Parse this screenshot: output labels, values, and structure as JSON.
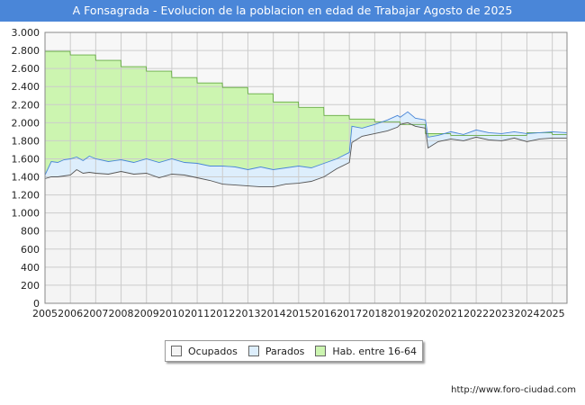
{
  "chart_data": {
    "type": "area",
    "title": "A Fonsagrada - Evolucion de la poblacion en edad de Trabajar Agosto de 2025",
    "xlabel": "",
    "ylabel": "",
    "ylim": [
      0,
      3000
    ],
    "xlim": [
      2005,
      2025.58
    ],
    "y_ticks": [
      0,
      200,
      400,
      600,
      800,
      1000,
      1200,
      1400,
      1600,
      1800,
      2000,
      2200,
      2400,
      2600,
      2800,
      3000
    ],
    "y_tick_labels": [
      "0",
      "200",
      "400",
      "600",
      "800",
      "1.000",
      "1.200",
      "1.400",
      "1.600",
      "1.800",
      "2.000",
      "2.200",
      "2.400",
      "2.600",
      "2.800",
      "3.000"
    ],
    "x_ticks": [
      2005,
      2006,
      2007,
      2008,
      2009,
      2010,
      2011,
      2012,
      2013,
      2014,
      2015,
      2016,
      2017,
      2018,
      2019,
      2020,
      2021,
      2022,
      2023,
      2024,
      2025
    ],
    "x_tick_labels": [
      "2005",
      "2006",
      "2007",
      "2008",
      "2009",
      "2010",
      "2011",
      "2012",
      "2013",
      "2014",
      "2015",
      "2016",
      "2017",
      "2018",
      "2019",
      "2020",
      "2021",
      "2022",
      "2023",
      "2024",
      "2025"
    ],
    "grid": true,
    "legend_position": "bottom",
    "series": [
      {
        "name": "Hab. entre 16-64",
        "color": "#ccf5b0",
        "line_color": "#66aa44",
        "x": [
          2005.0,
          2005.99,
          2006.0,
          2006.99,
          2007.0,
          2007.99,
          2008.0,
          2008.99,
          2009.0,
          2009.99,
          2010.0,
          2010.99,
          2011.0,
          2011.99,
          2012.0,
          2012.99,
          2013.0,
          2013.99,
          2014.0,
          2014.99,
          2015.0,
          2015.99,
          2016.0,
          2016.99,
          2017.0,
          2017.99,
          2018.0,
          2018.99,
          2019.0,
          2019.99,
          2020.0,
          2020.99,
          2021.0,
          2021.99,
          2022.0,
          2022.99,
          2023.0,
          2023.99,
          2024.0,
          2024.99,
          2025.0,
          2025.58
        ],
        "values": [
          2790,
          2790,
          2750,
          2750,
          2690,
          2690,
          2620,
          2620,
          2570,
          2570,
          2500,
          2500,
          2440,
          2440,
          2390,
          2390,
          2320,
          2320,
          2230,
          2230,
          2170,
          2170,
          2080,
          2080,
          2040,
          2040,
          2010,
          2010,
          1980,
          1980,
          1880,
          1880,
          1860,
          1860,
          1860,
          1860,
          1860,
          1860,
          1890,
          1890,
          1870,
          1870
        ]
      },
      {
        "name": "Parados",
        "color": "#ddeefc",
        "line_color": "#4a86d8",
        "x": [
          2005.0,
          2005.25,
          2005.5,
          2005.75,
          2006.0,
          2006.25,
          2006.5,
          2006.75,
          2007.0,
          2007.5,
          2008.0,
          2008.5,
          2009.0,
          2009.5,
          2010.0,
          2010.5,
          2011.0,
          2011.5,
          2012.0,
          2012.5,
          2013.0,
          2013.5,
          2014.0,
          2014.5,
          2015.0,
          2015.5,
          2016.0,
          2016.5,
          2017.0,
          2017.1,
          2017.5,
          2018.0,
          2018.5,
          2018.9,
          2019.0,
          2019.3,
          2019.6,
          2020.0,
          2020.1,
          2020.5,
          2021.0,
          2021.5,
          2022.0,
          2022.5,
          2023.0,
          2023.5,
          2024.0,
          2024.5,
          2025.0,
          2025.58
        ],
        "values": [
          1420,
          1570,
          1560,
          1590,
          1600,
          1620,
          1580,
          1630,
          1600,
          1570,
          1590,
          1560,
          1600,
          1560,
          1600,
          1560,
          1550,
          1520,
          1520,
          1510,
          1480,
          1510,
          1480,
          1500,
          1520,
          1500,
          1550,
          1600,
          1670,
          1960,
          1940,
          1980,
          2030,
          2080,
          2060,
          2120,
          2050,
          2030,
          1840,
          1860,
          1900,
          1870,
          1920,
          1890,
          1880,
          1900,
          1880,
          1890,
          1900,
          1890
        ]
      },
      {
        "name": "Ocupados",
        "color": "#f4f4f4",
        "line_color": "#555555",
        "x": [
          2005.0,
          2005.25,
          2005.5,
          2005.75,
          2006.0,
          2006.25,
          2006.5,
          2006.75,
          2007.0,
          2007.5,
          2008.0,
          2008.5,
          2009.0,
          2009.5,
          2010.0,
          2010.5,
          2011.0,
          2011.5,
          2012.0,
          2012.5,
          2013.0,
          2013.5,
          2014.0,
          2014.5,
          2015.0,
          2015.5,
          2016.0,
          2016.5,
          2017.0,
          2017.1,
          2017.5,
          2018.0,
          2018.5,
          2018.9,
          2019.0,
          2019.3,
          2019.6,
          2020.0,
          2020.1,
          2020.5,
          2021.0,
          2021.5,
          2022.0,
          2022.5,
          2023.0,
          2023.5,
          2024.0,
          2024.5,
          2025.0,
          2025.58
        ],
        "values": [
          1380,
          1400,
          1400,
          1410,
          1420,
          1480,
          1440,
          1450,
          1440,
          1430,
          1460,
          1430,
          1440,
          1390,
          1430,
          1420,
          1390,
          1360,
          1320,
          1310,
          1300,
          1290,
          1290,
          1320,
          1330,
          1350,
          1400,
          1490,
          1560,
          1780,
          1850,
          1880,
          1910,
          1950,
          1980,
          2000,
          1960,
          1940,
          1720,
          1790,
          1820,
          1800,
          1840,
          1810,
          1800,
          1830,
          1790,
          1820,
          1830,
          1830
        ]
      }
    ]
  },
  "legend": {
    "items": [
      {
        "label": "Ocupados",
        "color": "#f4f4f4"
      },
      {
        "label": "Parados",
        "color": "#ddeefc"
      },
      {
        "label": "Hab. entre 16-64",
        "color": "#ccf5b0"
      }
    ]
  },
  "footer": {
    "url": "http://www.foro-ciudad.com"
  }
}
